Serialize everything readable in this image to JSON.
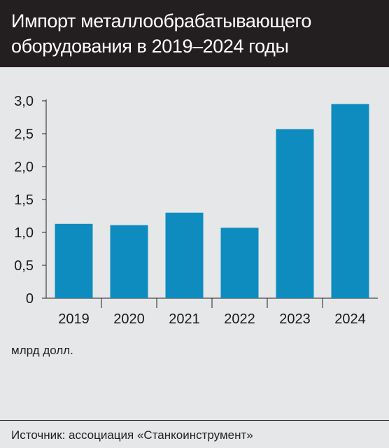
{
  "header": {
    "title_line1": "Импорт металлообрабатывающего",
    "title_line2": "оборудования в 2019–2024 годы"
  },
  "colors": {
    "header_bg": "#231f20",
    "bar": "#0e8cc0",
    "background": "#e6e7e8"
  },
  "unit_label": "млрд долл.",
  "footer": {
    "source": "Источник: ассоциация «Станкоинструмент»"
  },
  "chart_data": {
    "type": "bar",
    "categories": [
      "2019",
      "2020",
      "2021",
      "2022",
      "2023",
      "2024"
    ],
    "values": [
      1.13,
      1.11,
      1.3,
      1.07,
      2.57,
      2.95
    ],
    "ylim": [
      0,
      3.0
    ],
    "yticks": [
      "0",
      "0,5",
      "1,0",
      "1,5",
      "2,0",
      "2,5",
      "3,0"
    ],
    "ytick_values": [
      0,
      0.5,
      1.0,
      1.5,
      2.0,
      2.5,
      3.0
    ],
    "xlabel": "",
    "ylabel": "млрд долл.",
    "grid": false
  }
}
